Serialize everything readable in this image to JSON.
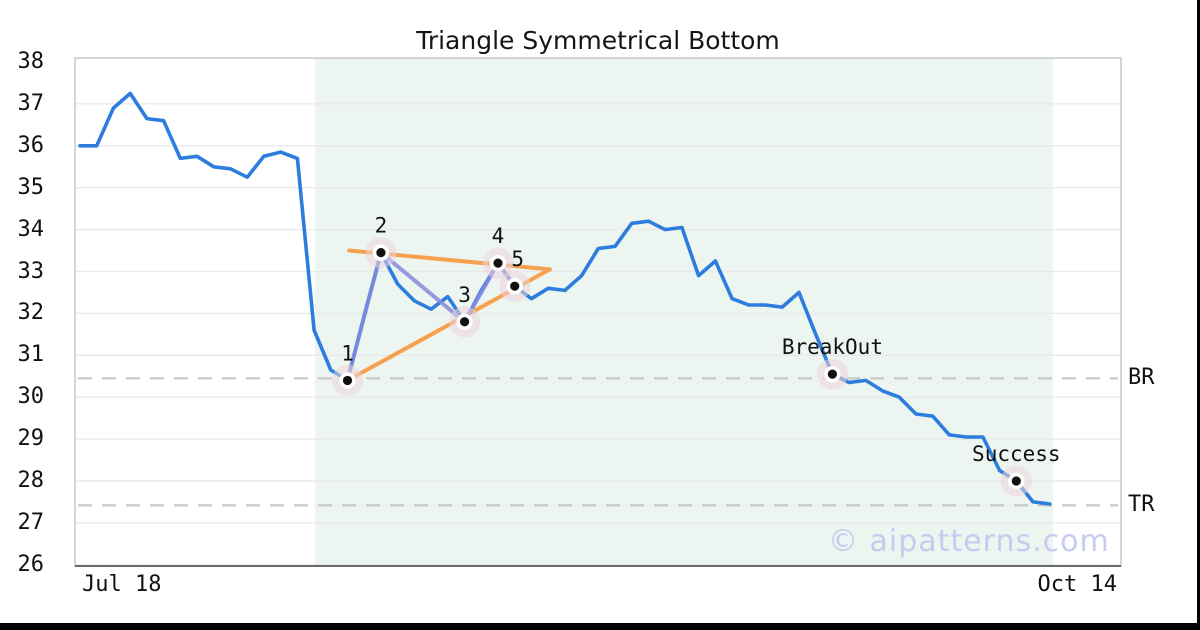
{
  "title": "Triangle Symmetrical Bottom",
  "watermark": "© aipatterns.com",
  "colors": {
    "price_line": "#2d7dde",
    "trendline": "#f7a04e",
    "connector": "#8589dd",
    "marker_halo": "#ecd3db",
    "marker_dot": "#111111",
    "shade": "#edf5f1",
    "grid": "#e8e8ec",
    "dashed_level": "#cbcbcb",
    "plot_border": "#d5d5d9",
    "bottom_spine": "#6a6c70",
    "watermark_color": "#c7cbee",
    "text": "#111111"
  },
  "chart_data": {
    "type": "line",
    "title": "Triangle Symmetrical Bottom",
    "x_start_label": "Jul 18",
    "x_end_label": "Oct 14",
    "ylim": [
      26,
      38
    ],
    "y_ticks": [
      26,
      27,
      28,
      29,
      30,
      31,
      32,
      33,
      34,
      35,
      36,
      37,
      38
    ],
    "grid": "horizontal",
    "legend": "none",
    "series": [
      {
        "name": "price",
        "values": [
          36.0,
          36.0,
          36.9,
          37.25,
          36.65,
          36.6,
          35.7,
          35.75,
          35.5,
          35.45,
          35.25,
          35.75,
          35.85,
          35.7,
          31.6,
          30.65,
          30.4,
          31.95,
          33.45,
          32.7,
          32.3,
          32.1,
          32.4,
          31.8,
          32.55,
          33.2,
          32.65,
          32.35,
          32.6,
          32.55,
          32.9,
          33.55,
          33.6,
          34.15,
          34.2,
          34.0,
          34.05,
          32.9,
          33.25,
          32.35,
          32.2,
          32.2,
          32.15,
          32.5,
          31.5,
          30.55,
          30.35,
          30.4,
          30.15,
          30.0,
          29.6,
          29.55,
          29.1,
          29.05,
          29.05,
          28.25,
          28.0,
          27.5,
          27.45
        ]
      }
    ],
    "levels": [
      {
        "label": "BR",
        "value": 30.45
      },
      {
        "label": "TR",
        "value": 27.42
      }
    ],
    "shaded_region": {
      "start_index": 14.05,
      "end_index": 58.2
    },
    "pattern_points": [
      {
        "label": "1",
        "index": 16,
        "value": 30.4
      },
      {
        "label": "2",
        "index": 18,
        "value": 33.45
      },
      {
        "label": "3",
        "index": 23,
        "value": 31.8
      },
      {
        "label": "4",
        "index": 25,
        "value": 33.2
      },
      {
        "label": "5",
        "index": 26,
        "value": 32.65
      },
      {
        "label": "BreakOut",
        "index": 45,
        "value": 30.55
      },
      {
        "label": "Success",
        "index": 56,
        "value": 28.0
      }
    ],
    "trendlines": [
      {
        "name": "upper",
        "from": {
          "index": 16.1,
          "value": 33.5
        },
        "to": {
          "index": 28.1,
          "value": 33.05
        }
      },
      {
        "name": "lower",
        "from": {
          "index": 16.0,
          "value": 30.4
        },
        "to": {
          "index": 28.1,
          "value": 33.05
        }
      }
    ],
    "connector_indices": [
      16,
      18,
      23,
      25,
      26
    ]
  }
}
